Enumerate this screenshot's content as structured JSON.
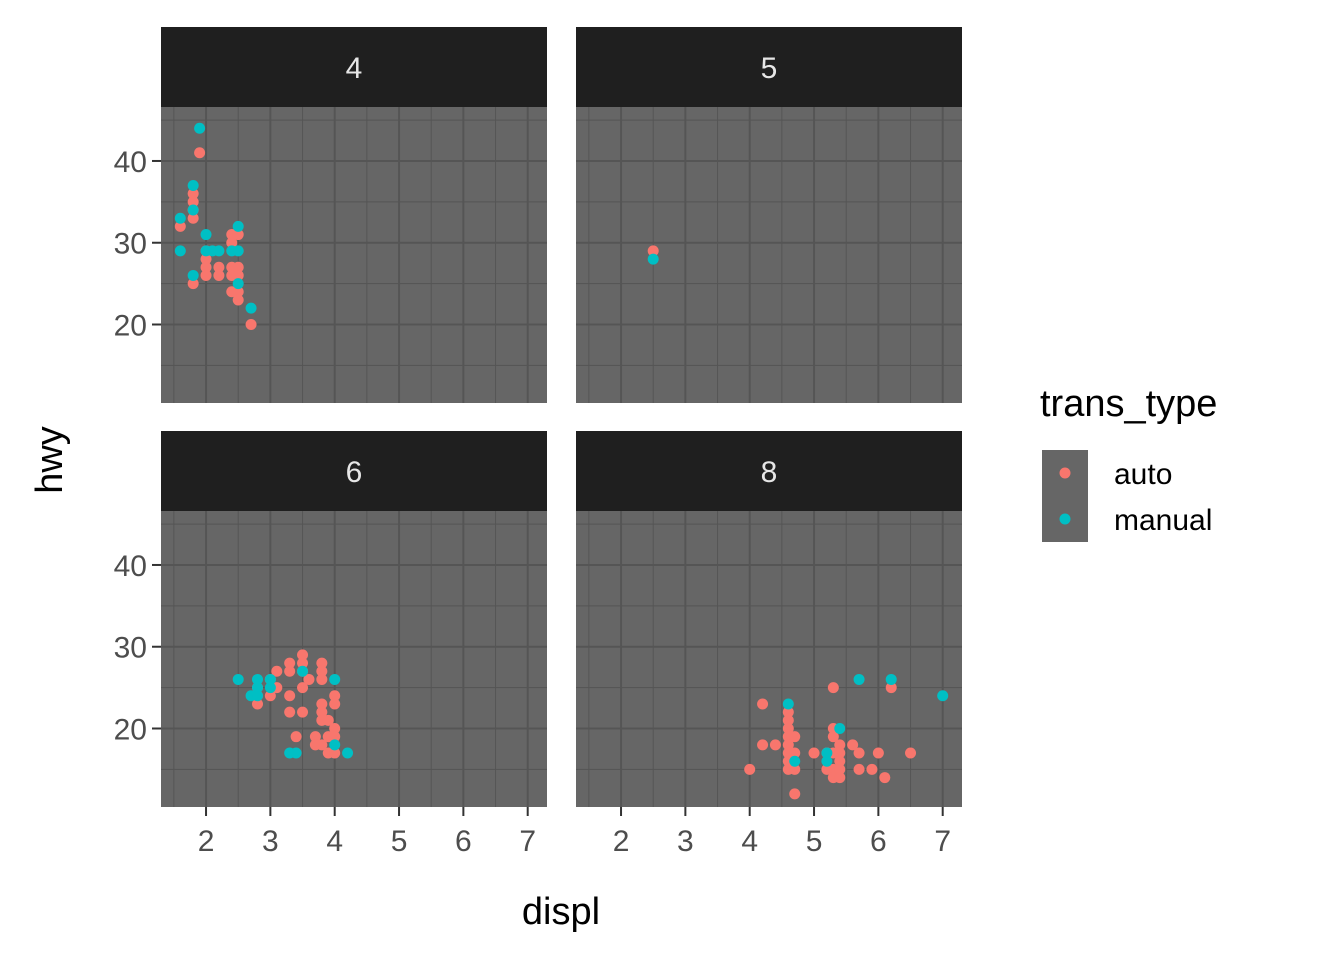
{
  "chart_data": {
    "type": "scatter",
    "xlabel": "displ",
    "ylabel": "hwy",
    "xlim": [
      1.3,
      7.3
    ],
    "ylim": [
      10.4,
      46.6
    ],
    "x_ticks": [
      2,
      3,
      4,
      5,
      6,
      7
    ],
    "y_ticks": [
      20,
      30,
      40
    ],
    "grid": true,
    "legend": {
      "title": "trans_type",
      "position": "right",
      "entries": [
        {
          "name": "auto",
          "color": "#f8766d"
        },
        {
          "name": "manual",
          "color": "#00bfc4"
        }
      ]
    },
    "colors": {
      "panel_bg": "#666666",
      "strip_bg": "#1f1f1f",
      "grid": "#555555",
      "auto": "#f8766d",
      "manual": "#00bfc4"
    },
    "panels": [
      {
        "label": "4",
        "auto": [
          [
            1.6,
            32
          ],
          [
            1.8,
            36
          ],
          [
            1.8,
            35
          ],
          [
            1.8,
            34
          ],
          [
            1.8,
            33
          ],
          [
            1.8,
            25
          ],
          [
            1.9,
            41
          ],
          [
            2.0,
            29
          ],
          [
            2.0,
            28
          ],
          [
            2.0,
            27
          ],
          [
            2.0,
            26
          ],
          [
            2.2,
            27
          ],
          [
            2.2,
            26
          ],
          [
            2.4,
            31
          ],
          [
            2.4,
            30
          ],
          [
            2.4,
            27
          ],
          [
            2.4,
            26
          ],
          [
            2.4,
            24
          ],
          [
            2.5,
            31
          ],
          [
            2.5,
            27
          ],
          [
            2.5,
            26
          ],
          [
            2.5,
            24
          ],
          [
            2.5,
            23
          ],
          [
            2.7,
            20
          ]
        ],
        "manual": [
          [
            1.6,
            33
          ],
          [
            1.6,
            29
          ],
          [
            1.8,
            37
          ],
          [
            1.8,
            34
          ],
          [
            1.8,
            26
          ],
          [
            1.9,
            44
          ],
          [
            2.0,
            31
          ],
          [
            2.0,
            29
          ],
          [
            2.1,
            29
          ],
          [
            2.2,
            29
          ],
          [
            2.4,
            29
          ],
          [
            2.5,
            32
          ],
          [
            2.5,
            29
          ],
          [
            2.5,
            25
          ],
          [
            2.7,
            22
          ]
        ]
      },
      {
        "label": "5",
        "auto": [
          [
            2.5,
            29
          ]
        ],
        "manual": [
          [
            2.5,
            28
          ]
        ]
      },
      {
        "label": "6",
        "auto": [
          [
            2.8,
            25
          ],
          [
            2.8,
            24
          ],
          [
            2.8,
            23
          ],
          [
            3.0,
            26
          ],
          [
            3.0,
            24
          ],
          [
            3.1,
            27
          ],
          [
            3.1,
            25
          ],
          [
            3.3,
            28
          ],
          [
            3.3,
            27
          ],
          [
            3.3,
            24
          ],
          [
            3.3,
            22
          ],
          [
            3.4,
            19
          ],
          [
            3.5,
            29
          ],
          [
            3.5,
            28
          ],
          [
            3.5,
            27
          ],
          [
            3.5,
            25
          ],
          [
            3.5,
            22
          ],
          [
            3.6,
            26
          ],
          [
            3.7,
            19
          ],
          [
            3.7,
            18
          ],
          [
            3.8,
            28
          ],
          [
            3.8,
            27
          ],
          [
            3.8,
            26
          ],
          [
            3.8,
            23
          ],
          [
            3.8,
            22
          ],
          [
            3.8,
            21
          ],
          [
            3.8,
            18
          ],
          [
            3.9,
            21
          ],
          [
            3.9,
            19
          ],
          [
            3.9,
            17
          ],
          [
            4.0,
            24
          ],
          [
            4.0,
            23
          ],
          [
            4.0,
            20
          ],
          [
            4.0,
            19
          ],
          [
            4.0,
            17
          ]
        ],
        "manual": [
          [
            2.5,
            26
          ],
          [
            2.7,
            24
          ],
          [
            2.8,
            26
          ],
          [
            2.8,
            25
          ],
          [
            2.8,
            24
          ],
          [
            3.0,
            26
          ],
          [
            3.0,
            25
          ],
          [
            3.3,
            17
          ],
          [
            3.4,
            17
          ],
          [
            3.5,
            27
          ],
          [
            4.0,
            26
          ],
          [
            4.0,
            18
          ],
          [
            4.2,
            17
          ]
        ]
      },
      {
        "label": "8",
        "auto": [
          [
            4.0,
            15
          ],
          [
            4.2,
            23
          ],
          [
            4.2,
            18
          ],
          [
            4.4,
            18
          ],
          [
            4.6,
            22
          ],
          [
            4.6,
            21
          ],
          [
            4.6,
            20
          ],
          [
            4.6,
            19
          ],
          [
            4.6,
            18
          ],
          [
            4.6,
            17
          ],
          [
            4.6,
            16
          ],
          [
            4.6,
            15
          ],
          [
            4.7,
            19
          ],
          [
            4.7,
            17
          ],
          [
            4.7,
            15
          ],
          [
            4.7,
            12
          ],
          [
            5.0,
            17
          ],
          [
            5.2,
            17
          ],
          [
            5.2,
            15
          ],
          [
            5.3,
            20
          ],
          [
            5.3,
            19
          ],
          [
            5.3,
            17
          ],
          [
            5.3,
            15
          ],
          [
            5.3,
            14
          ],
          [
            5.3,
            25
          ],
          [
            5.4,
            18
          ],
          [
            5.4,
            17
          ],
          [
            5.4,
            16
          ],
          [
            5.4,
            15
          ],
          [
            5.4,
            14
          ],
          [
            5.6,
            18
          ],
          [
            5.7,
            17
          ],
          [
            5.7,
            15
          ],
          [
            5.9,
            15
          ],
          [
            6.0,
            17
          ],
          [
            6.1,
            14
          ],
          [
            6.2,
            25
          ],
          [
            6.5,
            17
          ]
        ],
        "manual": [
          [
            4.6,
            23
          ],
          [
            4.7,
            16
          ],
          [
            5.2,
            17
          ],
          [
            5.2,
            16
          ],
          [
            5.4,
            20
          ],
          [
            5.7,
            26
          ],
          [
            6.2,
            26
          ],
          [
            7.0,
            24
          ]
        ]
      }
    ]
  }
}
